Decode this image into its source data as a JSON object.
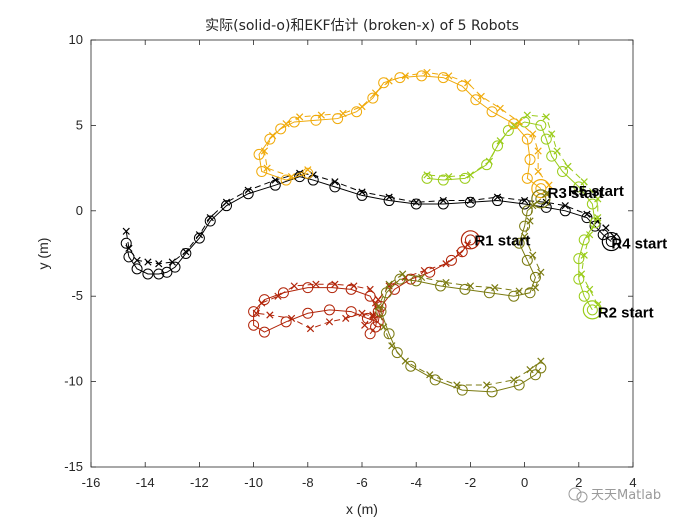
{
  "chart_data": {
    "type": "line",
    "title": "实际(solid-o)和EKF估计 (broken-x) of 5 Robots",
    "xlabel": "x (m)",
    "ylabel": "y (m)",
    "xlim": [
      -16,
      4
    ],
    "ylim": [
      -15,
      10
    ],
    "xticks": [
      "-16",
      "-14",
      "-12",
      "-10",
      "-8",
      "-6",
      "-4",
      "-2",
      "0",
      "2",
      "4"
    ],
    "yticks": [
      "10",
      "5",
      "0",
      "-5",
      "-10",
      "-15"
    ],
    "grid": false,
    "box": true,
    "series": [
      {
        "color": "#000000",
        "label": "R4 start",
        "label_pos": [
          3.2,
          -1.9
        ],
        "actual": [
          [
            3.2,
            -1.8
          ],
          [
            2.9,
            -1.4
          ],
          [
            2.6,
            -0.9
          ],
          [
            2.3,
            -0.4
          ],
          [
            1.5,
            0.0
          ],
          [
            0.8,
            0.2
          ],
          [
            0.0,
            0.4
          ],
          [
            -1.0,
            0.6
          ],
          [
            -2.0,
            0.5
          ],
          [
            -3.0,
            0.4
          ],
          [
            -4.0,
            0.4
          ],
          [
            -5.0,
            0.6
          ],
          [
            -6.0,
            0.9
          ],
          [
            -7.0,
            1.4
          ],
          [
            -7.8,
            1.8
          ],
          [
            -8.3,
            2.0
          ],
          [
            -9.2,
            1.5
          ],
          [
            -10.2,
            1.0
          ],
          [
            -11.0,
            0.3
          ],
          [
            -11.6,
            -0.6
          ],
          [
            -12.0,
            -1.6
          ],
          [
            -12.5,
            -2.5
          ],
          [
            -12.9,
            -3.3
          ],
          [
            -13.2,
            -3.6
          ],
          [
            -13.5,
            -3.7
          ],
          [
            -13.9,
            -3.7
          ],
          [
            -14.3,
            -3.4
          ],
          [
            -14.6,
            -2.7
          ],
          [
            -14.7,
            -1.9
          ]
        ],
        "estimate": [
          [
            3.3,
            -1.5
          ],
          [
            3.0,
            -1.0
          ],
          [
            2.7,
            -0.6
          ],
          [
            2.3,
            -0.2
          ],
          [
            1.5,
            0.3
          ],
          [
            0.8,
            0.5
          ],
          [
            0.0,
            0.6
          ],
          [
            -1.0,
            0.8
          ],
          [
            -2.0,
            0.6
          ],
          [
            -3.0,
            0.6
          ],
          [
            -4.0,
            0.5
          ],
          [
            -5.0,
            0.8
          ],
          [
            -6.0,
            1.1
          ],
          [
            -7.0,
            1.7
          ],
          [
            -7.8,
            2.1
          ],
          [
            -8.3,
            2.2
          ],
          [
            -9.2,
            1.8
          ],
          [
            -10.2,
            1.2
          ],
          [
            -11.0,
            0.5
          ],
          [
            -11.6,
            -0.4
          ],
          [
            -12.0,
            -1.4
          ],
          [
            -12.5,
            -2.4
          ],
          [
            -13.0,
            -3.0
          ],
          [
            -13.5,
            -3.1
          ],
          [
            -13.9,
            -3.0
          ],
          [
            -14.3,
            -2.9
          ],
          [
            -14.6,
            -2.2
          ],
          [
            -14.7,
            -1.2
          ]
        ]
      },
      {
        "color": "#b2250a",
        "label": "R1 start",
        "label_pos": [
          -1.85,
          -1.75
        ],
        "actual": [
          [
            -2.0,
            -1.7
          ],
          [
            -2.3,
            -2.4
          ],
          [
            -2.7,
            -2.9
          ],
          [
            -3.5,
            -3.6
          ],
          [
            -4.2,
            -4.0
          ],
          [
            -4.8,
            -4.6
          ],
          [
            -5.3,
            -5.6
          ],
          [
            -5.4,
            -6.5
          ],
          [
            -5.8,
            -6.3
          ],
          [
            -6.4,
            -5.9
          ],
          [
            -7.2,
            -5.8
          ],
          [
            -8.0,
            -6.0
          ],
          [
            -8.8,
            -6.5
          ],
          [
            -9.6,
            -7.1
          ],
          [
            -10.0,
            -6.7
          ],
          [
            -10.0,
            -5.9
          ],
          [
            -9.6,
            -5.2
          ],
          [
            -8.9,
            -4.8
          ],
          [
            -8.0,
            -4.5
          ],
          [
            -7.1,
            -4.5
          ],
          [
            -6.4,
            -4.6
          ],
          [
            -5.7,
            -5.0
          ],
          [
            -5.4,
            -5.9
          ],
          [
            -5.5,
            -6.8
          ],
          [
            -5.7,
            -7.2
          ]
        ],
        "estimate": [
          [
            -2.1,
            -2.0
          ],
          [
            -2.4,
            -2.5
          ],
          [
            -2.9,
            -3.1
          ],
          [
            -3.7,
            -3.5
          ],
          [
            -4.4,
            -3.9
          ],
          [
            -5.0,
            -4.4
          ],
          [
            -5.5,
            -5.4
          ],
          [
            -5.6,
            -6.2
          ],
          [
            -6.0,
            -6.0
          ],
          [
            -6.6,
            -6.3
          ],
          [
            -7.2,
            -6.5
          ],
          [
            -7.9,
            -6.9
          ],
          [
            -8.6,
            -6.3
          ],
          [
            -9.4,
            -6.1
          ],
          [
            -9.9,
            -6.0
          ],
          [
            -9.7,
            -5.4
          ],
          [
            -9.1,
            -5.0
          ],
          [
            -8.5,
            -4.4
          ],
          [
            -7.7,
            -4.3
          ],
          [
            -7.0,
            -4.3
          ],
          [
            -6.3,
            -4.4
          ],
          [
            -5.7,
            -4.6
          ],
          [
            -5.4,
            -5.2
          ],
          [
            -5.6,
            -6.1
          ],
          [
            -5.9,
            -6.7
          ]
        ]
      },
      {
        "color": "#9acc1a",
        "label": "R2 start",
        "label_pos": [
          2.7,
          -5.95
        ],
        "actual": [
          [
            2.5,
            -5.8
          ],
          [
            2.2,
            -5.0
          ],
          [
            2.0,
            -4.0
          ],
          [
            2.0,
            -2.8
          ],
          [
            2.2,
            -1.7
          ],
          [
            2.6,
            -0.7
          ],
          [
            2.5,
            0.4
          ],
          [
            2.0,
            1.4
          ],
          [
            1.4,
            2.3
          ],
          [
            1.0,
            3.2
          ],
          [
            0.8,
            4.2
          ],
          [
            0.6,
            5.0
          ],
          [
            0.0,
            5.2
          ],
          [
            -0.6,
            4.7
          ],
          [
            -1.0,
            3.8
          ],
          [
            -1.4,
            2.7
          ],
          [
            -2.2,
            1.9
          ],
          [
            -3.0,
            1.8
          ],
          [
            -3.6,
            1.9
          ]
        ],
        "estimate": [
          [
            2.7,
            -5.5
          ],
          [
            2.4,
            -4.6
          ],
          [
            2.1,
            -3.7
          ],
          [
            2.2,
            -2.6
          ],
          [
            2.4,
            -1.4
          ],
          [
            2.7,
            -0.4
          ],
          [
            2.7,
            0.7
          ],
          [
            2.2,
            1.7
          ],
          [
            1.6,
            2.6
          ],
          [
            1.2,
            3.5
          ],
          [
            1.0,
            4.5
          ],
          [
            0.8,
            5.5
          ],
          [
            0.1,
            5.6
          ],
          [
            -0.4,
            5.0
          ],
          [
            -0.9,
            4.1
          ],
          [
            -1.3,
            2.9
          ],
          [
            -2.0,
            2.1
          ],
          [
            -2.8,
            2.0
          ],
          [
            -3.6,
            2.1
          ]
        ]
      },
      {
        "color": "#f0aa0a",
        "label": "R3 start",
        "label_pos": [
          0.85,
          1.05
        ],
        "actual": [
          [
            0.6,
            1.3
          ],
          [
            0.1,
            1.9
          ],
          [
            0.2,
            3.0
          ],
          [
            0.1,
            4.2
          ],
          [
            -0.4,
            5.1
          ],
          [
            -1.2,
            5.8
          ],
          [
            -1.8,
            6.5
          ],
          [
            -2.3,
            7.3
          ],
          [
            -3.0,
            7.8
          ],
          [
            -3.8,
            7.9
          ],
          [
            -4.6,
            7.8
          ],
          [
            -5.2,
            7.5
          ],
          [
            -5.6,
            6.6
          ],
          [
            -6.2,
            5.8
          ],
          [
            -6.9,
            5.4
          ],
          [
            -7.7,
            5.3
          ],
          [
            -8.5,
            5.2
          ],
          [
            -9.0,
            4.8
          ],
          [
            -9.4,
            4.2
          ],
          [
            -9.8,
            3.3
          ],
          [
            -9.7,
            2.3
          ],
          [
            -8.8,
            1.8
          ],
          [
            -8.0,
            2.2
          ]
        ],
        "estimate": [
          [
            0.9,
            1.5
          ],
          [
            0.5,
            2.3
          ],
          [
            0.5,
            3.5
          ],
          [
            0.3,
            4.5
          ],
          [
            -0.2,
            5.2
          ],
          [
            -0.9,
            6.0
          ],
          [
            -1.6,
            6.7
          ],
          [
            -2.1,
            7.5
          ],
          [
            -2.8,
            7.9
          ],
          [
            -3.6,
            8.1
          ],
          [
            -4.4,
            7.9
          ],
          [
            -5.0,
            7.6
          ],
          [
            -5.5,
            6.9
          ],
          [
            -6.0,
            6.1
          ],
          [
            -6.7,
            5.7
          ],
          [
            -7.5,
            5.6
          ],
          [
            -8.3,
            5.5
          ],
          [
            -8.8,
            5.1
          ],
          [
            -9.3,
            4.4
          ],
          [
            -9.6,
            3.5
          ],
          [
            -9.5,
            2.5
          ],
          [
            -8.6,
            2.0
          ],
          [
            -8.0,
            2.4
          ]
        ]
      },
      {
        "color": "#7a7a10",
        "label": "R5 start",
        "label_pos": [
          1.6,
          1.15
        ],
        "actual": [
          [
            0.6,
            0.7
          ],
          [
            0.1,
            0.0
          ],
          [
            0.0,
            -0.9
          ],
          [
            -0.2,
            -1.9
          ],
          [
            0.1,
            -2.9
          ],
          [
            0.4,
            -3.9
          ],
          [
            0.2,
            -4.8
          ],
          [
            -0.4,
            -5.0
          ],
          [
            -1.3,
            -4.8
          ],
          [
            -2.2,
            -4.6
          ],
          [
            -3.1,
            -4.4
          ],
          [
            -4.0,
            -4.1
          ],
          [
            -4.6,
            -4.0
          ],
          [
            -5.1,
            -4.8
          ],
          [
            -5.3,
            -5.9
          ],
          [
            -5.0,
            -7.2
          ],
          [
            -4.7,
            -8.3
          ],
          [
            -4.2,
            -9.1
          ],
          [
            -3.3,
            -9.9
          ],
          [
            -2.3,
            -10.5
          ],
          [
            -1.2,
            -10.6
          ],
          [
            -0.2,
            -10.2
          ],
          [
            0.4,
            -9.6
          ],
          [
            0.6,
            -9.2
          ]
        ],
        "estimate": [
          [
            0.8,
            1.0
          ],
          [
            0.3,
            0.3
          ],
          [
            0.2,
            -0.6
          ],
          [
            0.0,
            -1.5
          ],
          [
            0.3,
            -2.6
          ],
          [
            0.6,
            -3.6
          ],
          [
            0.4,
            -4.5
          ],
          [
            -0.2,
            -4.7
          ],
          [
            -1.1,
            -4.5
          ],
          [
            -2.0,
            -4.4
          ],
          [
            -2.9,
            -4.2
          ],
          [
            -3.8,
            -3.9
          ],
          [
            -4.5,
            -3.7
          ],
          [
            -5.0,
            -4.3
          ],
          [
            -5.4,
            -5.6
          ],
          [
            -5.2,
            -6.8
          ],
          [
            -4.9,
            -7.9
          ],
          [
            -4.4,
            -8.8
          ],
          [
            -3.5,
            -9.6
          ],
          [
            -2.5,
            -10.2
          ],
          [
            -1.4,
            -10.2
          ],
          [
            -0.4,
            -9.9
          ],
          [
            0.2,
            -9.3
          ],
          [
            0.6,
            -8.8
          ]
        ]
      }
    ]
  },
  "watermark": {
    "text": "天天Matlab"
  }
}
